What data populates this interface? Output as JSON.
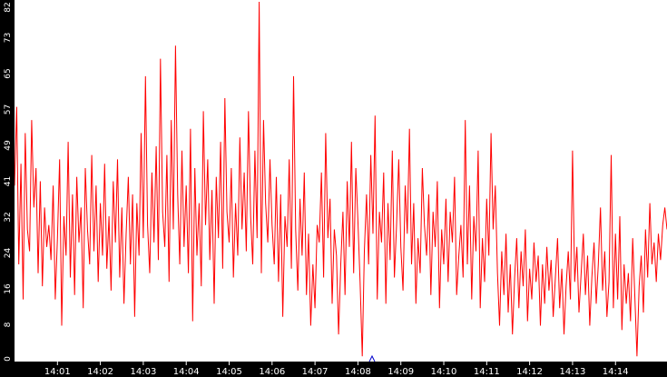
{
  "chart_data": {
    "type": "line",
    "title": "",
    "xlabel": "",
    "ylabel": "",
    "x_tick_labels": [
      "14:01",
      "14:02",
      "14:03",
      "14:04",
      "14:05",
      "14:06",
      "14:07",
      "14:08",
      "14:09",
      "14:10",
      "14:11",
      "14:12",
      "14:13",
      "14:14"
    ],
    "y_tick_labels": [
      "0",
      "8",
      "16",
      "24",
      "32",
      "41",
      "49",
      "57",
      "65",
      "73",
      "82"
    ],
    "ylim": [
      0,
      82
    ],
    "x_range_minutes": [
      0,
      15.2
    ],
    "grid": false,
    "colors": {
      "background": "#ffffff",
      "series": "#ff0000",
      "axis_band": "#000000",
      "axis_text": "#ffffff",
      "marker": "#0000cc"
    },
    "series": [
      {
        "points": [
          [
            0.0,
            40
          ],
          [
            0.05,
            58
          ],
          [
            0.1,
            22
          ],
          [
            0.15,
            45
          ],
          [
            0.2,
            14
          ],
          [
            0.25,
            52
          ],
          [
            0.3,
            30
          ],
          [
            0.35,
            25
          ],
          [
            0.4,
            55
          ],
          [
            0.45,
            35
          ],
          [
            0.5,
            44
          ],
          [
            0.55,
            20
          ],
          [
            0.6,
            41
          ],
          [
            0.65,
            17
          ],
          [
            0.7,
            35
          ],
          [
            0.75,
            26
          ],
          [
            0.8,
            31
          ],
          [
            0.85,
            23
          ],
          [
            0.9,
            40
          ],
          [
            0.95,
            14
          ],
          [
            1.0,
            28
          ],
          [
            1.05,
            46
          ],
          [
            1.1,
            8
          ],
          [
            1.15,
            33
          ],
          [
            1.2,
            24
          ],
          [
            1.25,
            50
          ],
          [
            1.3,
            19
          ],
          [
            1.35,
            38
          ],
          [
            1.4,
            15
          ],
          [
            1.45,
            42
          ],
          [
            1.5,
            27
          ],
          [
            1.55,
            35
          ],
          [
            1.6,
            12
          ],
          [
            1.65,
            44
          ],
          [
            1.7,
            30
          ],
          [
            1.75,
            22
          ],
          [
            1.8,
            47
          ],
          [
            1.85,
            25
          ],
          [
            1.9,
            40
          ],
          [
            1.95,
            18
          ],
          [
            2.0,
            36
          ],
          [
            2.05,
            24
          ],
          [
            2.1,
            45
          ],
          [
            2.15,
            21
          ],
          [
            2.2,
            33
          ],
          [
            2.25,
            16
          ],
          [
            2.3,
            41
          ],
          [
            2.35,
            27
          ],
          [
            2.4,
            46
          ],
          [
            2.45,
            19
          ],
          [
            2.5,
            35
          ],
          [
            2.55,
            13
          ],
          [
            2.6,
            29
          ],
          [
            2.65,
            42
          ],
          [
            2.7,
            22
          ],
          [
            2.75,
            38
          ],
          [
            2.8,
            10
          ],
          [
            2.85,
            36
          ],
          [
            2.9,
            24
          ],
          [
            2.95,
            52
          ],
          [
            3.0,
            28
          ],
          [
            3.05,
            65
          ],
          [
            3.1,
            31
          ],
          [
            3.15,
            20
          ],
          [
            3.2,
            43
          ],
          [
            3.25,
            27
          ],
          [
            3.3,
            49
          ],
          [
            3.35,
            23
          ],
          [
            3.4,
            69
          ],
          [
            3.45,
            34
          ],
          [
            3.5,
            26
          ],
          [
            3.55,
            47
          ],
          [
            3.6,
            18
          ],
          [
            3.65,
            55
          ],
          [
            3.7,
            30
          ],
          [
            3.75,
            72
          ],
          [
            3.8,
            38
          ],
          [
            3.85,
            22
          ],
          [
            3.9,
            48
          ],
          [
            3.95,
            26
          ],
          [
            4.0,
            40
          ],
          [
            4.05,
            20
          ],
          [
            4.1,
            53
          ],
          [
            4.15,
            9
          ],
          [
            4.2,
            44
          ],
          [
            4.25,
            24
          ],
          [
            4.3,
            36
          ],
          [
            4.35,
            17
          ],
          [
            4.4,
            57
          ],
          [
            4.45,
            31
          ],
          [
            4.5,
            46
          ],
          [
            4.55,
            23
          ],
          [
            4.6,
            39
          ],
          [
            4.65,
            13
          ],
          [
            4.7,
            42
          ],
          [
            4.75,
            28
          ],
          [
            4.8,
            50
          ],
          [
            4.85,
            21
          ],
          [
            4.9,
            60
          ],
          [
            4.95,
            34
          ],
          [
            5.0,
            27
          ],
          [
            5.05,
            44
          ],
          [
            5.1,
            19
          ],
          [
            5.15,
            36
          ],
          [
            5.2,
            24
          ],
          [
            5.25,
            51
          ],
          [
            5.3,
            30
          ],
          [
            5.35,
            43
          ],
          [
            5.4,
            25
          ],
          [
            5.45,
            57
          ],
          [
            5.5,
            33
          ],
          [
            5.55,
            22
          ],
          [
            5.6,
            48
          ],
          [
            5.65,
            28
          ],
          [
            5.7,
            82
          ],
          [
            5.75,
            20
          ],
          [
            5.8,
            55
          ],
          [
            5.85,
            36
          ],
          [
            5.9,
            27
          ],
          [
            5.95,
            46
          ],
          [
            6.0,
            31
          ],
          [
            6.05,
            22
          ],
          [
            6.1,
            42
          ],
          [
            6.15,
            18
          ],
          [
            6.2,
            38
          ],
          [
            6.25,
            10
          ],
          [
            6.3,
            33
          ],
          [
            6.35,
            26
          ],
          [
            6.4,
            46
          ],
          [
            6.45,
            21
          ],
          [
            6.5,
            65
          ],
          [
            6.55,
            30
          ],
          [
            6.6,
            16
          ],
          [
            6.65,
            37
          ],
          [
            6.7,
            24
          ],
          [
            6.75,
            43
          ],
          [
            6.8,
            15
          ],
          [
            6.85,
            29
          ],
          [
            6.9,
            8
          ],
          [
            6.95,
            22
          ],
          [
            7.0,
            12
          ],
          [
            7.05,
            31
          ],
          [
            7.1,
            27
          ],
          [
            7.15,
            43
          ],
          [
            7.2,
            19
          ],
          [
            7.25,
            52
          ],
          [
            7.3,
            28
          ],
          [
            7.35,
            37
          ],
          [
            7.4,
            13
          ],
          [
            7.45,
            30
          ],
          [
            7.5,
            24
          ],
          [
            7.55,
            6
          ],
          [
            7.6,
            22
          ],
          [
            7.65,
            34
          ],
          [
            7.7,
            15
          ],
          [
            7.75,
            41
          ],
          [
            7.8,
            26
          ],
          [
            7.85,
            50
          ],
          [
            7.9,
            20
          ],
          [
            7.95,
            44
          ],
          [
            8.0,
            32
          ],
          [
            8.05,
            18
          ],
          [
            8.1,
            1
          ],
          [
            8.15,
            25
          ],
          [
            8.2,
            38
          ],
          [
            8.25,
            22
          ],
          [
            8.3,
            47
          ],
          [
            8.35,
            29
          ],
          [
            8.4,
            56
          ],
          [
            8.45,
            14
          ],
          [
            8.5,
            34
          ],
          [
            8.55,
            27
          ],
          [
            8.6,
            43
          ],
          [
            8.65,
            13
          ],
          [
            8.7,
            36
          ],
          [
            8.75,
            23
          ],
          [
            8.8,
            48
          ],
          [
            8.85,
            19
          ],
          [
            8.9,
            31
          ],
          [
            8.95,
            46
          ],
          [
            9.0,
            26
          ],
          [
            9.05,
            16
          ],
          [
            9.1,
            40
          ],
          [
            9.15,
            29
          ],
          [
            9.2,
            53
          ],
          [
            9.25,
            22
          ],
          [
            9.3,
            36
          ],
          [
            9.35,
            13
          ],
          [
            9.4,
            28
          ],
          [
            9.45,
            20
          ],
          [
            9.5,
            44
          ],
          [
            9.55,
            31
          ],
          [
            9.6,
            24
          ],
          [
            9.65,
            38
          ],
          [
            9.7,
            15
          ],
          [
            9.75,
            34
          ],
          [
            9.8,
            26
          ],
          [
            9.85,
            41
          ],
          [
            9.9,
            12
          ],
          [
            9.95,
            30
          ],
          [
            10.0,
            22
          ],
          [
            10.05,
            37
          ],
          [
            10.1,
            18
          ],
          [
            10.15,
            34
          ],
          [
            10.2,
            27
          ],
          [
            10.25,
            42
          ],
          [
            10.3,
            15
          ],
          [
            10.35,
            24
          ],
          [
            10.4,
            31
          ],
          [
            10.45,
            19
          ],
          [
            10.5,
            55
          ],
          [
            10.55,
            22
          ],
          [
            10.6,
            40
          ],
          [
            10.65,
            14
          ],
          [
            10.7,
            33
          ],
          [
            10.75,
            25
          ],
          [
            10.8,
            48
          ],
          [
            10.85,
            12
          ],
          [
            10.9,
            28
          ],
          [
            10.95,
            18
          ],
          [
            11.0,
            37
          ],
          [
            11.05,
            24
          ],
          [
            11.1,
            52
          ],
          [
            11.15,
            30
          ],
          [
            11.2,
            40
          ],
          [
            11.25,
            20
          ],
          [
            11.3,
            8
          ],
          [
            11.35,
            25
          ],
          [
            11.4,
            15
          ],
          [
            11.45,
            29
          ],
          [
            11.5,
            11
          ],
          [
            11.55,
            22
          ],
          [
            11.6,
            6
          ],
          [
            11.65,
            19
          ],
          [
            11.7,
            28
          ],
          [
            11.75,
            12
          ],
          [
            11.8,
            25
          ],
          [
            11.85,
            17
          ],
          [
            11.9,
            30
          ],
          [
            11.95,
            9
          ],
          [
            12.0,
            21
          ],
          [
            12.05,
            14
          ],
          [
            12.1,
            27
          ],
          [
            12.15,
            18
          ],
          [
            12.2,
            24
          ],
          [
            12.25,
            8
          ],
          [
            12.3,
            22
          ],
          [
            12.35,
            13
          ],
          [
            12.4,
            26
          ],
          [
            12.45,
            16
          ],
          [
            12.5,
            23
          ],
          [
            12.55,
            10
          ],
          [
            12.6,
            19
          ],
          [
            12.65,
            28
          ],
          [
            12.7,
            12
          ],
          [
            12.75,
            21
          ],
          [
            12.8,
            6
          ],
          [
            12.85,
            17
          ],
          [
            12.9,
            25
          ],
          [
            12.95,
            14
          ],
          [
            13.0,
            48
          ],
          [
            13.05,
            18
          ],
          [
            13.1,
            26
          ],
          [
            13.15,
            11
          ],
          [
            13.2,
            20
          ],
          [
            13.25,
            29
          ],
          [
            13.3,
            15
          ],
          [
            13.35,
            24
          ],
          [
            13.4,
            8
          ],
          [
            13.45,
            19
          ],
          [
            13.5,
            27
          ],
          [
            13.55,
            13
          ],
          [
            13.6,
            22
          ],
          [
            13.65,
            35
          ],
          [
            13.7,
            16
          ],
          [
            13.75,
            25
          ],
          [
            13.8,
            10
          ],
          [
            13.85,
            18
          ],
          [
            13.9,
            47
          ],
          [
            13.95,
            12
          ],
          [
            14.0,
            29
          ],
          [
            14.05,
            14
          ],
          [
            14.1,
            33
          ],
          [
            14.15,
            7
          ],
          [
            14.2,
            22
          ],
          [
            14.25,
            13
          ],
          [
            14.3,
            20
          ],
          [
            14.35,
            9
          ],
          [
            14.4,
            28
          ],
          [
            14.45,
            15
          ],
          [
            14.5,
            1
          ],
          [
            14.55,
            17
          ],
          [
            14.6,
            24
          ],
          [
            14.65,
            11
          ],
          [
            14.7,
            30
          ],
          [
            14.75,
            19
          ],
          [
            14.8,
            36
          ],
          [
            14.85,
            22
          ],
          [
            14.9,
            27
          ],
          [
            14.95,
            18
          ],
          [
            15.0,
            29
          ],
          [
            15.05,
            23
          ],
          [
            15.1,
            31
          ],
          [
            15.15,
            35
          ],
          [
            15.2,
            30
          ]
        ]
      }
    ]
  }
}
